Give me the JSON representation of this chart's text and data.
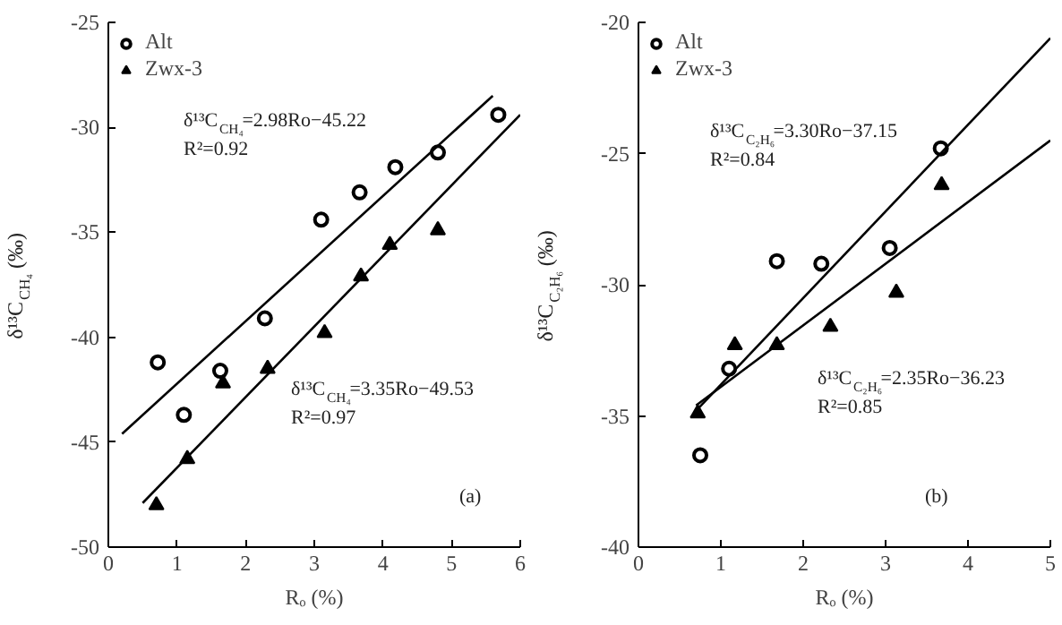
{
  "chart_data": [
    {
      "type": "scatter",
      "xlabel": "Rₒ (%)",
      "ylabel": "δ¹³C$_{CH₄}$ (‰)",
      "xlim": [
        0,
        6
      ],
      "ylim": [
        -50,
        -25
      ],
      "xticks": [
        0,
        1,
        2,
        3,
        4,
        5,
        6
      ],
      "yticks": [
        -50,
        -45,
        -40,
        -35,
        -30,
        -25
      ],
      "grid": false,
      "legend": "top left",
      "annotations": [
        "δ¹³C$_{CH₄}$=2.98Ro−45.22",
        "R²=0.92",
        "δ¹³C$_{CH₄}$=3.35Ro−49.53",
        "R²=0.97",
        "(a)"
      ],
      "series": [
        {
          "name": "Alt",
          "color": "#000000",
          "marker": "circle",
          "x": [
            0.72,
            1.1,
            1.63,
            2.28,
            3.1,
            3.66,
            4.18,
            4.8,
            5.68
          ],
          "values": [
            -41.2,
            -43.7,
            -41.6,
            -39.1,
            -34.4,
            -33.1,
            -31.9,
            -31.2,
            -29.4
          ]
        },
        {
          "name": "Zwx-3",
          "color": "#000000",
          "marker": "triangle",
          "x": [
            0.7,
            1.15,
            1.67,
            2.32,
            3.15,
            3.68,
            4.1,
            4.8
          ],
          "values": [
            -48.0,
            -45.8,
            -42.2,
            -41.5,
            -39.8,
            -37.1,
            -35.6,
            -34.9
          ]
        },
        {
          "type": "line",
          "color": "#000000",
          "x": [
            0.2,
            5.6
          ],
          "values": [
            -44.6,
            -28.5
          ]
        },
        {
          "type": "line",
          "color": "#000000",
          "x": [
            0.5,
            6.0
          ],
          "values": [
            -47.9,
            -29.4
          ]
        }
      ]
    },
    {
      "type": "scatter",
      "xlabel": "Rₒ (%)",
      "ylabel": "δ¹³C$_{C₂H₆}$ (‰)",
      "xlim": [
        0,
        5
      ],
      "ylim": [
        -40,
        -20
      ],
      "xticks": [
        0,
        1,
        2,
        3,
        4,
        5
      ],
      "yticks": [
        -40,
        -35,
        -30,
        -25,
        -20
      ],
      "grid": false,
      "legend": "top left",
      "annotations": [
        "δ¹³C$_{C₂H₆}$=3.30Ro−37.15",
        "R²=0.84",
        "δ¹³C$_{C₂H₆}$=2.35Ro−36.23",
        "R²=0.85",
        "(b)"
      ],
      "series": [
        {
          "name": "Alt",
          "color": "#000000",
          "marker": "circle",
          "x": [
            0.75,
            1.1,
            1.68,
            2.22,
            3.05,
            3.67
          ],
          "values": [
            -36.5,
            -33.2,
            -29.1,
            -29.2,
            -28.6,
            -24.8
          ]
        },
        {
          "name": "Zwx-3",
          "color": "#000000",
          "marker": "triangle",
          "x": [
            0.72,
            1.17,
            1.68,
            2.33,
            3.13,
            3.68
          ],
          "values": [
            -34.9,
            -32.3,
            -32.3,
            -31.6,
            -30.3,
            -26.2
          ]
        },
        {
          "type": "line",
          "color": "#000000",
          "x": [
            0.7,
            5.0
          ],
          "values": [
            -34.8,
            -20.6
          ]
        },
        {
          "type": "line",
          "color": "#000000",
          "x": [
            0.7,
            5.0
          ],
          "values": [
            -34.6,
            -24.5
          ]
        }
      ]
    }
  ]
}
